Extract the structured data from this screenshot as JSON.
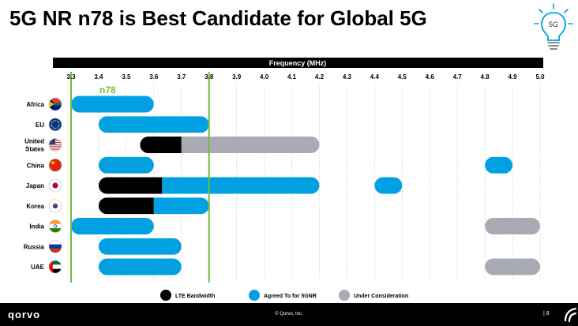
{
  "slide": {
    "title": "5G NR n78 is Best Candidate for Global 5G",
    "bulb_label": "5G",
    "footer_brand": "qorvo",
    "copyright": "© Qorvo, Inc.",
    "page_number": "8"
  },
  "colors": {
    "lte": "#000000",
    "agreed": "#00a0e3",
    "consideration": "#a8aab4",
    "band_line": "#6dbf3e",
    "grid": "#cccccc",
    "axis_bar": "#000000"
  },
  "chart_data": {
    "type": "bar",
    "orientation": "horizontal-range",
    "xlabel": "Frequency (MHz)",
    "xlim": [
      3.3,
      5.0
    ],
    "x_ticks": [
      "3.3",
      "3.4",
      "3.5",
      "3.6",
      "3.7",
      "3.8",
      "3.9",
      "4.0",
      "4.1",
      "4.2",
      "4.3",
      "4.4",
      "4.5",
      "4.6",
      "4.7",
      "4.8",
      "4.9",
      "5.0"
    ],
    "band_marker": {
      "label": "n78",
      "from": 3.3,
      "to": 3.8
    },
    "categories": [
      "Africa",
      "EU",
      "United States",
      "China",
      "Japan",
      "Korea",
      "India",
      "Russia",
      "UAE"
    ],
    "category_label_lines": [
      [
        "Africa"
      ],
      [
        "EU"
      ],
      [
        "United",
        "States"
      ],
      [
        "China"
      ],
      [
        "Japan"
      ],
      [
        "Korea"
      ],
      [
        "India"
      ],
      [
        "Russia"
      ],
      [
        "UAE"
      ]
    ],
    "flag_icons": [
      "south-africa-flag-icon",
      "eu-flag-icon",
      "us-flag-icon",
      "china-flag-icon",
      "japan-flag-icon",
      "korea-flag-icon",
      "india-flag-icon",
      "russia-flag-icon",
      "uae-flag-icon"
    ],
    "series": [
      {
        "name": "LTE Bandwidth",
        "key": "lte"
      },
      {
        "name": "Agreed To for 5GNR",
        "key": "agreed"
      },
      {
        "name": "Under Consideration",
        "key": "consideration"
      }
    ],
    "rows": [
      {
        "segments": [
          {
            "series": "agreed",
            "from": 3.3,
            "to": 3.6
          }
        ]
      },
      {
        "segments": [
          {
            "series": "agreed",
            "from": 3.4,
            "to": 3.8
          }
        ]
      },
      {
        "segments": [
          {
            "series": "lte",
            "from": 3.55,
            "to": 3.7
          },
          {
            "series": "consideration",
            "from": 3.7,
            "to": 4.2
          }
        ]
      },
      {
        "segments": [
          {
            "series": "agreed",
            "from": 3.4,
            "to": 3.6
          },
          {
            "series": "agreed",
            "from": 4.8,
            "to": 4.9
          }
        ]
      },
      {
        "segments": [
          {
            "series": "lte",
            "from": 3.4,
            "to": 3.63
          },
          {
            "series": "agreed",
            "from": 3.63,
            "to": 4.2
          },
          {
            "series": "agreed",
            "from": 4.4,
            "to": 4.5
          }
        ]
      },
      {
        "segments": [
          {
            "series": "lte",
            "from": 3.4,
            "to": 3.6
          },
          {
            "series": "agreed",
            "from": 3.6,
            "to": 3.8
          }
        ]
      },
      {
        "segments": [
          {
            "series": "agreed",
            "from": 3.3,
            "to": 3.6
          },
          {
            "series": "consideration",
            "from": 4.8,
            "to": 5.0
          }
        ]
      },
      {
        "segments": [
          {
            "series": "agreed",
            "from": 3.4,
            "to": 3.7
          }
        ]
      },
      {
        "segments": [
          {
            "series": "agreed",
            "from": 3.4,
            "to": 3.7
          },
          {
            "series": "consideration",
            "from": 4.8,
            "to": 5.0
          }
        ]
      }
    ],
    "legend_position": "bottom-center",
    "grid": true
  }
}
